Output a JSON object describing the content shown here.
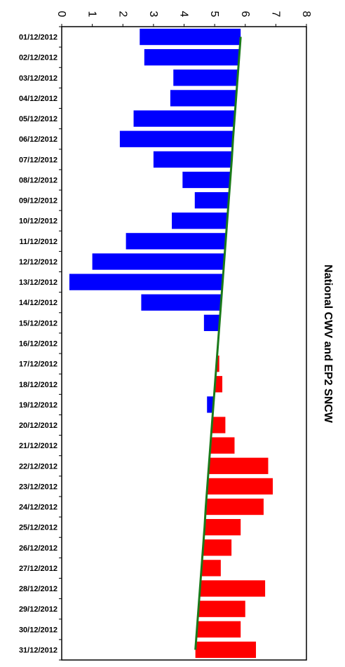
{
  "chart_data": {
    "type": "bar",
    "orientation": "horizontal",
    "title": "National CWV and EP2 SNCW",
    "xlim": [
      0,
      8
    ],
    "x_ticks": [
      "0",
      "1",
      "2",
      "3",
      "4",
      "5",
      "6",
      "7",
      "8"
    ],
    "grid": false,
    "legend": "none",
    "colors": {
      "above_trend": "#ff0000",
      "below_trend": "#0000ff",
      "trend": "#1a7a1a"
    },
    "categories": [
      "01/12/2012",
      "02/12/2012",
      "03/12/2012",
      "04/12/2012",
      "05/12/2012",
      "06/12/2012",
      "07/12/2012",
      "08/12/2012",
      "09/12/2012",
      "10/12/2012",
      "11/12/2012",
      "12/12/2012",
      "13/12/2012",
      "14/12/2012",
      "15/12/2012",
      "16/12/2012",
      "17/12/2012",
      "18/12/2012",
      "19/12/2012",
      "20/12/2012",
      "21/12/2012",
      "22/12/2012",
      "23/12/2012",
      "24/12/2012",
      "25/12/2012",
      "26/12/2012",
      "27/12/2012",
      "28/12/2012",
      "29/12/2012",
      "30/12/2012",
      "31/12/2012"
    ],
    "series": [
      {
        "values": [
          2.55,
          2.7,
          3.65,
          3.55,
          2.35,
          1.9,
          3.0,
          3.95,
          4.35,
          3.6,
          2.1,
          1.0,
          0.25,
          2.6,
          4.65,
          5.1,
          5.15,
          5.25,
          4.75,
          5.35,
          5.65,
          6.75,
          6.9,
          6.6,
          5.85,
          5.55,
          5.2,
          6.65,
          6.0,
          5.85,
          6.35
        ]
      },
      {
        "type": "line",
        "values": [
          5.85,
          5.8,
          5.75,
          5.7,
          5.65,
          5.6,
          5.56,
          5.51,
          5.46,
          5.41,
          5.36,
          5.31,
          5.26,
          5.21,
          5.16,
          5.11,
          5.06,
          5.01,
          4.96,
          4.91,
          4.86,
          4.81,
          4.76,
          4.71,
          4.67,
          4.62,
          4.57,
          4.52,
          4.47,
          4.42,
          4.37
        ]
      }
    ]
  }
}
